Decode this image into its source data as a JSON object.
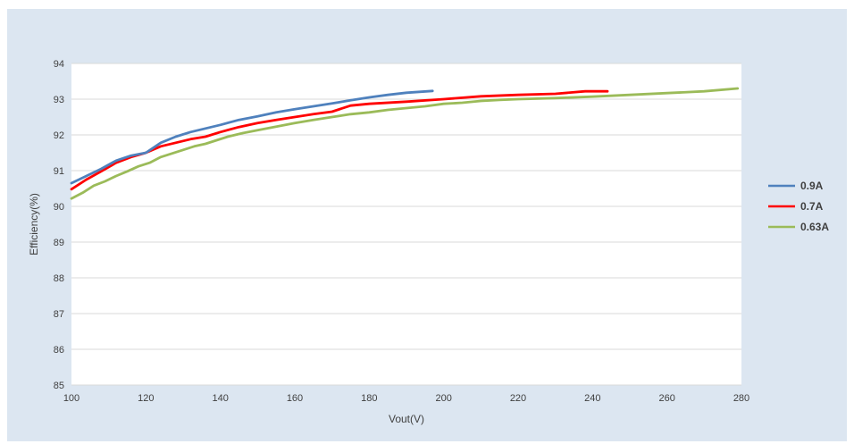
{
  "chart_data": {
    "type": "line",
    "title": "",
    "xlabel": "Vout(V)",
    "ylabel": "Efficiency(%)",
    "xlim": [
      100,
      280
    ],
    "ylim": [
      85,
      94
    ],
    "xticks": [
      "100",
      "120",
      "140",
      "160",
      "180",
      "200",
      "220",
      "240",
      "260",
      "280"
    ],
    "yticks": [
      "85",
      "86",
      "87",
      "88",
      "89",
      "90",
      "91",
      "92",
      "93",
      "94"
    ],
    "grid": "horizontal",
    "legend_position": "right",
    "series": [
      {
        "name": "0.9A",
        "color": "#4f81bd",
        "x": [
          100,
          104,
          108,
          112,
          116,
          120,
          124,
          128,
          132,
          136,
          140,
          145,
          150,
          155,
          160,
          165,
          170,
          175,
          180,
          185,
          190,
          197
        ],
        "y": [
          90.65,
          90.85,
          91.05,
          91.28,
          91.42,
          91.5,
          91.78,
          91.95,
          92.08,
          92.18,
          92.28,
          92.42,
          92.52,
          92.63,
          92.72,
          92.8,
          92.88,
          92.97,
          93.05,
          93.12,
          93.18,
          93.23
        ]
      },
      {
        "name": "0.7A",
        "color": "#ff0000",
        "x": [
          100,
          104,
          108,
          112,
          116,
          120,
          124,
          128,
          132,
          136,
          140,
          145,
          150,
          155,
          160,
          165,
          170,
          175,
          180,
          190,
          200,
          210,
          220,
          230,
          238,
          244
        ],
        "y": [
          90.48,
          90.75,
          90.98,
          91.22,
          91.38,
          91.5,
          91.68,
          91.78,
          91.88,
          91.95,
          92.08,
          92.22,
          92.33,
          92.42,
          92.5,
          92.58,
          92.65,
          92.82,
          92.87,
          92.93,
          93.0,
          93.08,
          93.12,
          93.15,
          93.22,
          93.22
        ]
      },
      {
        "name": "0.63A",
        "color": "#9bbb59",
        "x": [
          100,
          103,
          106,
          109,
          112,
          115,
          118,
          121,
          124,
          127,
          130,
          133,
          136,
          139,
          142,
          146,
          150,
          155,
          160,
          165,
          170,
          175,
          180,
          185,
          190,
          195,
          200,
          205,
          210,
          215,
          220,
          230,
          240,
          250,
          260,
          270,
          279
        ],
        "y": [
          90.22,
          90.38,
          90.58,
          90.7,
          90.85,
          90.98,
          91.12,
          91.22,
          91.38,
          91.48,
          91.58,
          91.68,
          91.75,
          91.85,
          91.95,
          92.05,
          92.13,
          92.23,
          92.33,
          92.42,
          92.5,
          92.58,
          92.63,
          92.7,
          92.75,
          92.8,
          92.87,
          92.9,
          92.95,
          92.98,
          93.0,
          93.03,
          93.07,
          93.12,
          93.17,
          93.22,
          93.3
        ]
      }
    ]
  }
}
